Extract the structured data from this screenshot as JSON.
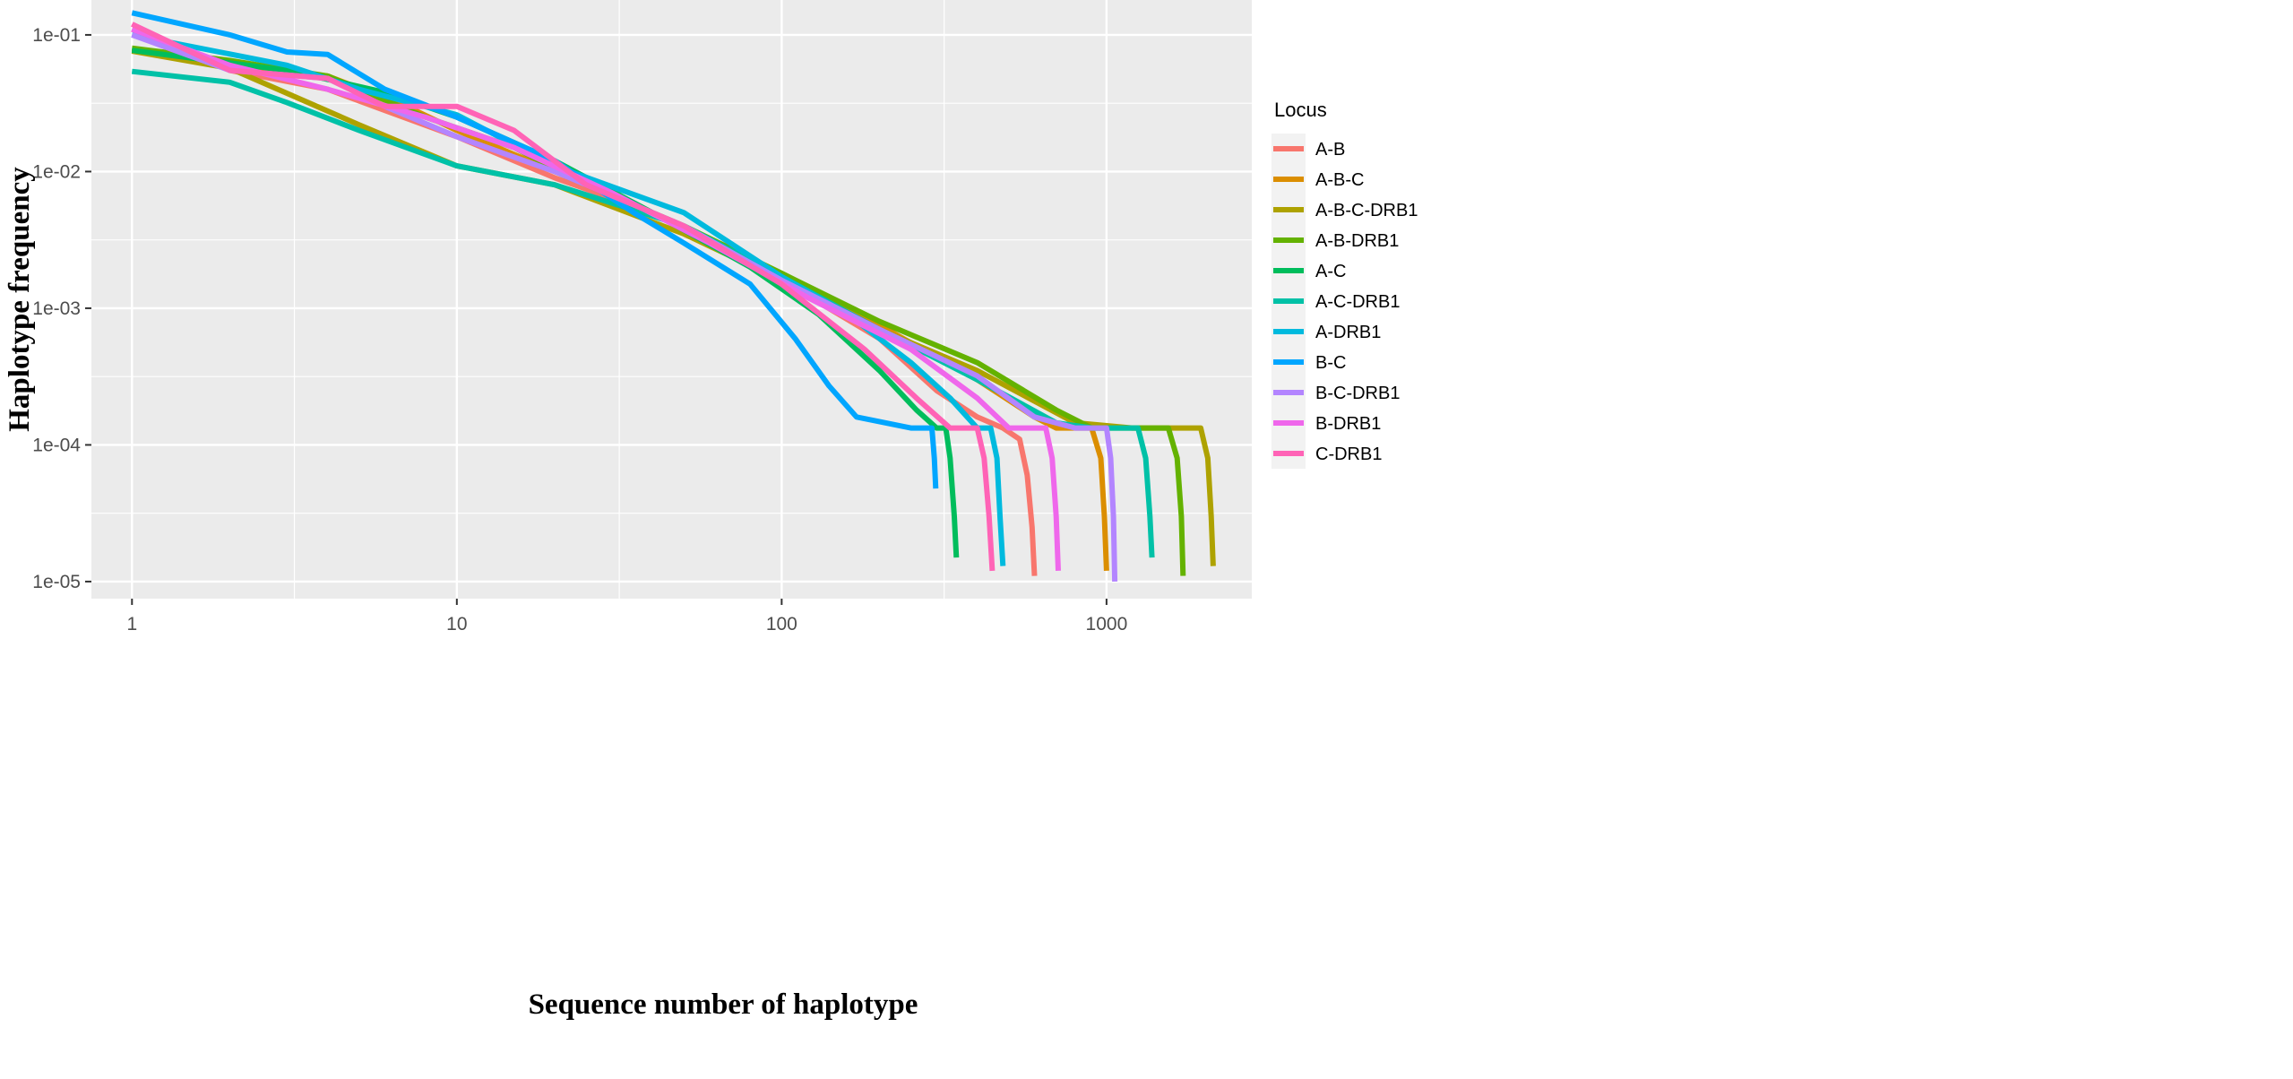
{
  "chart_data": {
    "type": "line",
    "title": "",
    "xlabel": "Sequence number of haplotype",
    "ylabel": "Haplotype frequency",
    "x_scale": "log10",
    "y_scale": "log10",
    "xlim": [
      0.75,
      2800
    ],
    "ylim": [
      7.5e-06,
      0.18
    ],
    "x_ticks": [
      {
        "value": 1,
        "label": "1"
      },
      {
        "value": 10,
        "label": "10"
      },
      {
        "value": 100,
        "label": "100"
      },
      {
        "value": 1000,
        "label": "1000"
      }
    ],
    "y_ticks": [
      {
        "value": 0.1,
        "label": "1e-01"
      },
      {
        "value": 0.01,
        "label": "1e-02"
      },
      {
        "value": 0.001,
        "label": "1e-03"
      },
      {
        "value": 0.0001,
        "label": "1e-04"
      },
      {
        "value": 1e-05,
        "label": "1e-05"
      }
    ],
    "grid": true,
    "legend": {
      "title": "Locus",
      "position": "right"
    },
    "series": [
      {
        "name": "A-B",
        "color": "#F8766D",
        "points": [
          [
            1,
            0.11
          ],
          [
            2,
            0.055
          ],
          [
            4,
            0.04
          ],
          [
            6,
            0.028
          ],
          [
            10,
            0.018
          ],
          [
            20,
            0.009
          ],
          [
            40,
            0.005
          ],
          [
            100,
            0.0016
          ],
          [
            200,
            0.0006
          ],
          [
            300,
            0.00025
          ],
          [
            400,
            0.00016
          ],
          [
            480,
            0.000133
          ],
          [
            540,
            0.00011
          ],
          [
            570,
            6e-05
          ],
          [
            590,
            2.5e-05
          ],
          [
            600,
            1.1e-05
          ]
        ]
      },
      {
        "name": "A-B-C",
        "color": "#DB8E00",
        "points": [
          [
            1,
            0.078
          ],
          [
            2,
            0.06
          ],
          [
            4,
            0.05
          ],
          [
            7,
            0.03
          ],
          [
            10,
            0.02
          ],
          [
            20,
            0.01
          ],
          [
            50,
            0.004
          ],
          [
            100,
            0.0017
          ],
          [
            200,
            0.00075
          ],
          [
            400,
            0.0003
          ],
          [
            600,
            0.00016
          ],
          [
            700,
            0.000133
          ],
          [
            900,
            0.000133
          ],
          [
            960,
            8e-05
          ],
          [
            985,
            3e-05
          ],
          [
            1000,
            1.2e-05
          ]
        ]
      },
      {
        "name": "A-B-C-DRB1",
        "color": "#AEA200",
        "points": [
          [
            1,
            0.076
          ],
          [
            2,
            0.057
          ],
          [
            5,
            0.022
          ],
          [
            10,
            0.011
          ],
          [
            20,
            0.008
          ],
          [
            50,
            0.0035
          ],
          [
            100,
            0.0016
          ],
          [
            200,
            0.0007
          ],
          [
            400,
            0.00035
          ],
          [
            800,
            0.000145
          ],
          [
            1200,
            0.000133
          ],
          [
            1950,
            0.000133
          ],
          [
            2050,
            8e-05
          ],
          [
            2100,
            3e-05
          ],
          [
            2130,
            1.3e-05
          ]
        ]
      },
      {
        "name": "A-B-DRB1",
        "color": "#64B200",
        "points": [
          [
            1,
            0.08
          ],
          [
            2,
            0.065
          ],
          [
            4,
            0.05
          ],
          [
            8,
            0.025
          ],
          [
            15,
            0.015
          ],
          [
            25,
            0.008
          ],
          [
            50,
            0.004
          ],
          [
            100,
            0.0018
          ],
          [
            200,
            0.0008
          ],
          [
            400,
            0.0004
          ],
          [
            700,
            0.00018
          ],
          [
            900,
            0.000133
          ],
          [
            1550,
            0.000133
          ],
          [
            1650,
            8e-05
          ],
          [
            1700,
            3e-05
          ],
          [
            1720,
            1.1e-05
          ]
        ]
      },
      {
        "name": "A-C",
        "color": "#00BD5C",
        "points": [
          [
            1,
            0.077
          ],
          [
            3,
            0.055
          ],
          [
            6,
            0.038
          ],
          [
            10,
            0.025
          ],
          [
            20,
            0.012
          ],
          [
            40,
            0.005
          ],
          [
            80,
            0.002
          ],
          [
            130,
            0.0009
          ],
          [
            200,
            0.00035
          ],
          [
            260,
            0.00018
          ],
          [
            300,
            0.000133
          ],
          [
            320,
            0.000133
          ],
          [
            330,
            8e-05
          ],
          [
            340,
            3e-05
          ],
          [
            345,
            1.5e-05
          ]
        ]
      },
      {
        "name": "A-C-DRB1",
        "color": "#00C1A7",
        "points": [
          [
            1,
            0.054
          ],
          [
            2,
            0.045
          ],
          [
            3,
            0.032
          ],
          [
            5,
            0.02
          ],
          [
            10,
            0.011
          ],
          [
            20,
            0.008
          ],
          [
            50,
            0.004
          ],
          [
            100,
            0.0017
          ],
          [
            200,
            0.0007
          ],
          [
            400,
            0.0003
          ],
          [
            700,
            0.000145
          ],
          [
            900,
            0.000133
          ],
          [
            1250,
            0.000133
          ],
          [
            1320,
            8e-05
          ],
          [
            1360,
            3e-05
          ],
          [
            1380,
            1.5e-05
          ]
        ]
      },
      {
        "name": "A-DRB1",
        "color": "#00BADE",
        "points": [
          [
            1,
            0.1
          ],
          [
            3,
            0.06
          ],
          [
            5,
            0.04
          ],
          [
            10,
            0.026
          ],
          [
            20,
            0.011
          ],
          [
            50,
            0.005
          ],
          [
            100,
            0.0017
          ],
          [
            160,
            0.0009
          ],
          [
            250,
            0.0004
          ],
          [
            330,
            0.00022
          ],
          [
            400,
            0.000133
          ],
          [
            440,
            0.000133
          ],
          [
            460,
            8e-05
          ],
          [
            470,
            3e-05
          ],
          [
            480,
            1.3e-05
          ]
        ]
      },
      {
        "name": "B-C",
        "color": "#00A6FF",
        "points": [
          [
            1,
            0.145
          ],
          [
            2,
            0.1
          ],
          [
            3,
            0.075
          ],
          [
            4,
            0.072
          ],
          [
            6,
            0.04
          ],
          [
            10,
            0.025
          ],
          [
            20,
            0.012
          ],
          [
            35,
            0.005
          ],
          [
            50,
            0.003
          ],
          [
            80,
            0.0015
          ],
          [
            110,
            0.0006
          ],
          [
            140,
            0.00027
          ],
          [
            170,
            0.00016
          ],
          [
            250,
            0.000133
          ],
          [
            290,
            0.000133
          ],
          [
            295,
            8e-05
          ],
          [
            298,
            4.8e-05
          ]
        ]
      },
      {
        "name": "B-C-DRB1",
        "color": "#B385FF",
        "points": [
          [
            1,
            0.1
          ],
          [
            2,
            0.055
          ],
          [
            4,
            0.048
          ],
          [
            6,
            0.03
          ],
          [
            10,
            0.018
          ],
          [
            20,
            0.01
          ],
          [
            50,
            0.004
          ],
          [
            100,
            0.0016
          ],
          [
            200,
            0.0007
          ],
          [
            400,
            0.00032
          ],
          [
            600,
            0.00016
          ],
          [
            800,
            0.000133
          ],
          [
            1000,
            0.000133
          ],
          [
            1030,
            8e-05
          ],
          [
            1050,
            3e-05
          ],
          [
            1060,
            1e-05
          ]
        ]
      },
      {
        "name": "B-DRB1",
        "color": "#EF67EB",
        "points": [
          [
            1,
            0.11
          ],
          [
            2,
            0.06
          ],
          [
            4,
            0.04
          ],
          [
            8,
            0.025
          ],
          [
            15,
            0.015
          ],
          [
            30,
            0.007
          ],
          [
            60,
            0.003
          ],
          [
            120,
            0.0012
          ],
          [
            250,
            0.0005
          ],
          [
            400,
            0.00022
          ],
          [
            500,
            0.000133
          ],
          [
            650,
            0.000133
          ],
          [
            680,
            8e-05
          ],
          [
            700,
            3e-05
          ],
          [
            710,
            1.2e-05
          ]
        ]
      },
      {
        "name": "C-DRB1",
        "color": "#FF63B6",
        "points": [
          [
            1,
            0.12
          ],
          [
            2,
            0.055
          ],
          [
            4,
            0.048
          ],
          [
            6,
            0.03
          ],
          [
            10,
            0.03
          ],
          [
            15,
            0.02
          ],
          [
            25,
            0.008
          ],
          [
            50,
            0.004
          ],
          [
            100,
            0.0015
          ],
          [
            180,
            0.0005
          ],
          [
            260,
            0.00022
          ],
          [
            330,
            0.000133
          ],
          [
            400,
            0.000133
          ],
          [
            420,
            8e-05
          ],
          [
            435,
            3e-05
          ],
          [
            445,
            1.2e-05
          ]
        ]
      }
    ]
  }
}
